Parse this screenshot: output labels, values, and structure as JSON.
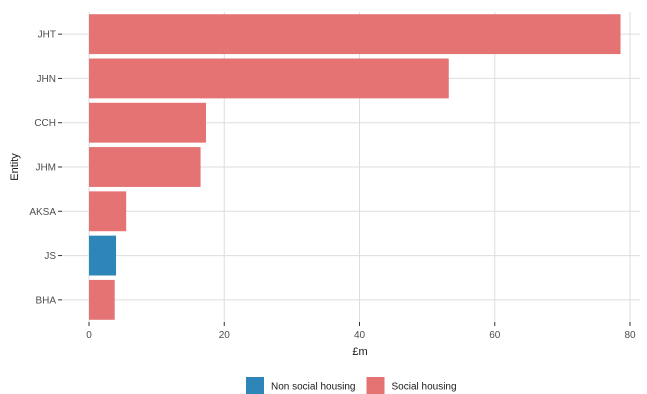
{
  "chart_data": {
    "type": "bar",
    "orientation": "horizontal",
    "xlabel": "£m",
    "ylabel": "Entity",
    "xlim": [
      0,
      80
    ],
    "xticks": [
      0,
      20,
      40,
      60,
      80
    ],
    "grid": true,
    "legend_position": "bottom",
    "categories": [
      "JHT",
      "JHN",
      "CCH",
      "JHM",
      "AKSA",
      "JS",
      "BHA"
    ],
    "series": [
      {
        "name": "Non social housing",
        "color": "#2e86b8",
        "values": [
          0,
          0,
          0,
          0,
          0,
          4.0,
          0
        ]
      },
      {
        "name": "Social housing",
        "color": "#e57373",
        "values": [
          78.6,
          53.2,
          17.3,
          16.5,
          5.5,
          0,
          3.8
        ]
      }
    ]
  }
}
